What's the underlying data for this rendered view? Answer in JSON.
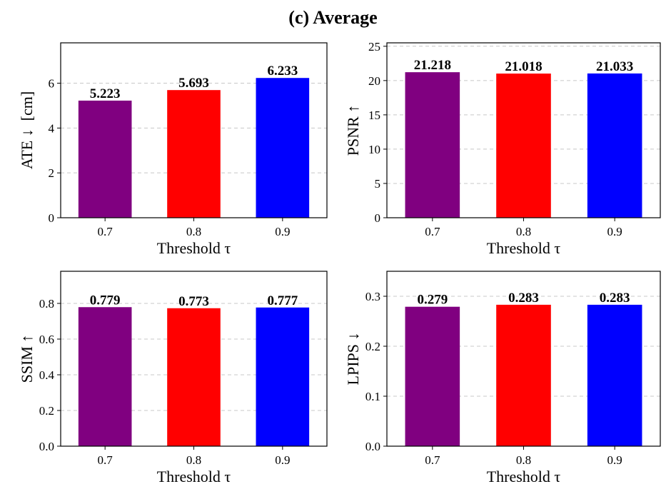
{
  "title": "(c) Average",
  "chart_data": [
    {
      "type": "bar",
      "id": "ate",
      "categories": [
        "0.7",
        "0.8",
        "0.9"
      ],
      "values": [
        5.223,
        5.693,
        6.233
      ],
      "value_labels": [
        "5.223",
        "5.693",
        "6.233"
      ],
      "colors": [
        "#800080",
        "#ff0000",
        "#0000ff"
      ],
      "xlabel": "Threshold τ",
      "ylabel": "ATE ↓  [cm]",
      "ylim": [
        0,
        7.8
      ],
      "yticks": [
        0,
        2,
        4,
        6
      ],
      "ytick_labels": [
        "0",
        "2",
        "4",
        "6"
      ],
      "grid": true
    },
    {
      "type": "bar",
      "id": "psnr",
      "categories": [
        "0.7",
        "0.8",
        "0.9"
      ],
      "values": [
        21.218,
        21.018,
        21.033
      ],
      "value_labels": [
        "21.218",
        "21.018",
        "21.033"
      ],
      "colors": [
        "#800080",
        "#ff0000",
        "#0000ff"
      ],
      "xlabel": "Threshold τ",
      "ylabel": "PSNR ↑",
      "ylim": [
        0,
        25.5
      ],
      "yticks": [
        0,
        5,
        10,
        15,
        20,
        25
      ],
      "ytick_labels": [
        "0",
        "5",
        "10",
        "15",
        "20",
        "25"
      ],
      "grid": true
    },
    {
      "type": "bar",
      "id": "ssim",
      "categories": [
        "0.7",
        "0.8",
        "0.9"
      ],
      "values": [
        0.779,
        0.773,
        0.777
      ],
      "value_labels": [
        "0.779",
        "0.773",
        "0.777"
      ],
      "colors": [
        "#800080",
        "#ff0000",
        "#0000ff"
      ],
      "xlabel": "Threshold τ",
      "ylabel": "SSIM ↑",
      "ylim": [
        0,
        0.98
      ],
      "yticks": [
        0,
        0.2,
        0.4,
        0.6,
        0.8
      ],
      "ytick_labels": [
        "0.0",
        "0.2",
        "0.4",
        "0.6",
        "0.8"
      ],
      "grid": true
    },
    {
      "type": "bar",
      "id": "lpips",
      "categories": [
        "0.7",
        "0.8",
        "0.9"
      ],
      "values": [
        0.279,
        0.283,
        0.283
      ],
      "value_labels": [
        "0.279",
        "0.283",
        "0.283"
      ],
      "colors": [
        "#800080",
        "#ff0000",
        "#0000ff"
      ],
      "xlabel": "Threshold τ",
      "ylabel": "LPIPS ↓",
      "ylim": [
        0,
        0.35
      ],
      "yticks": [
        0,
        0.1,
        0.2,
        0.3
      ],
      "ytick_labels": [
        "0.0",
        "0.1",
        "0.2",
        "0.3"
      ],
      "grid": true
    }
  ]
}
